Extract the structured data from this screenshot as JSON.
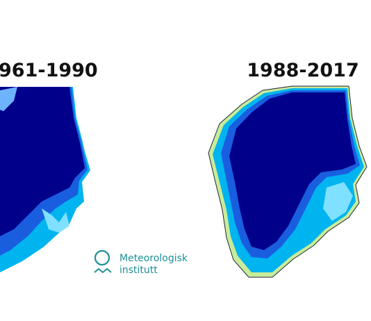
{
  "panels": [
    {
      "title": "961-1990"
    },
    {
      "title": "1988-2017"
    }
  ],
  "logo": {
    "line1": "Meteorologisk",
    "line2": "institutt"
  }
}
